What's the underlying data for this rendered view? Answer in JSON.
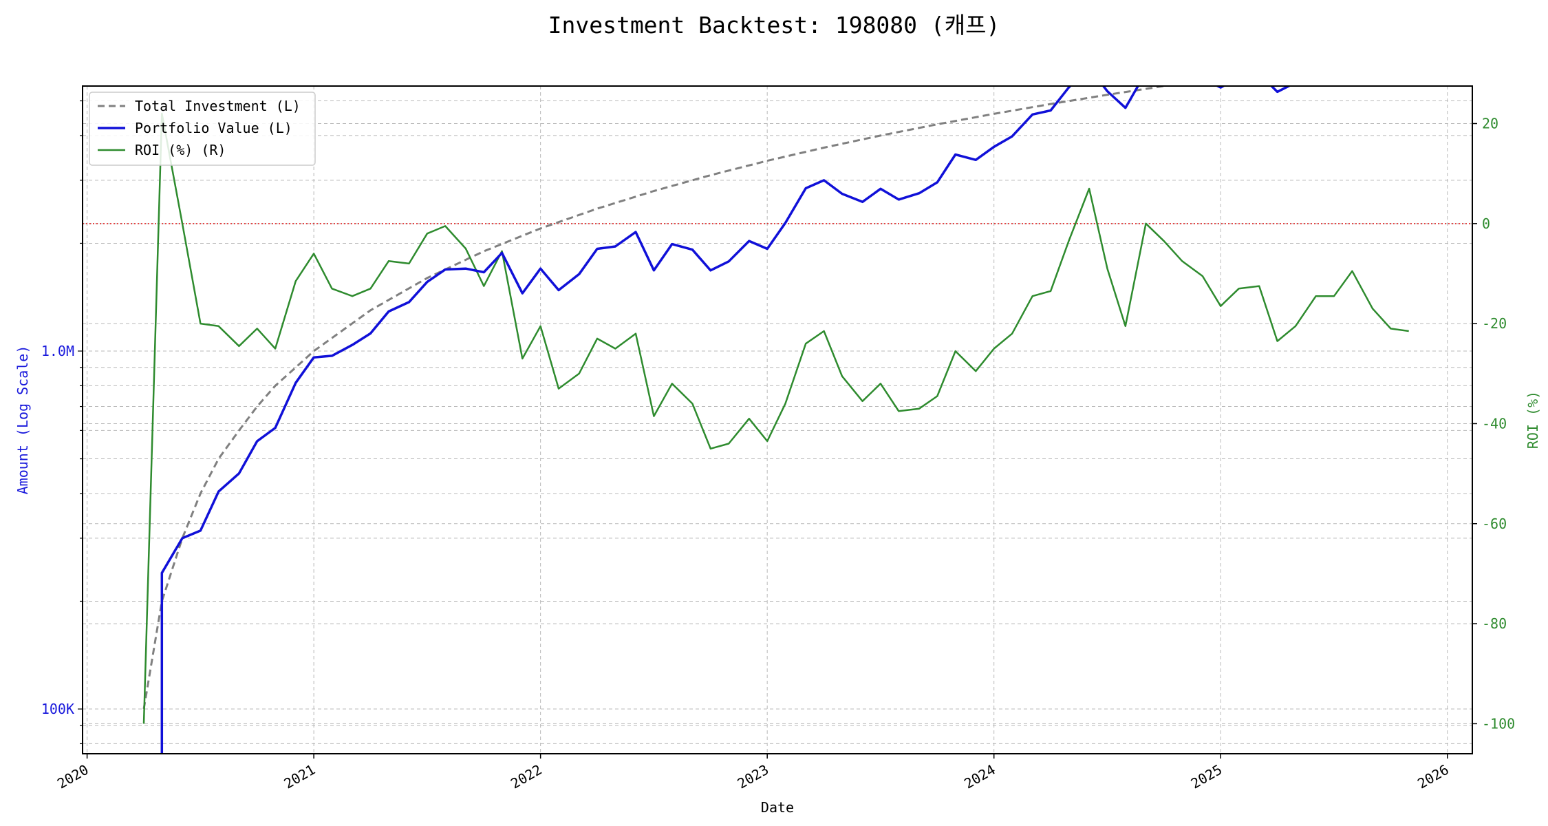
{
  "chart_data": {
    "type": "line",
    "title": "Investment Backtest: 198080 (캐프)",
    "xlabel": "Date",
    "ylabel_left": "Amount (Log Scale)",
    "ylabel_right": "ROI (%)",
    "left_axis": {
      "scale": "log",
      "ylim": [
        75000,
        5500000
      ],
      "ticks": [
        {
          "value": 100000,
          "label": "100K"
        },
        {
          "value": 1000000,
          "label": "1.0M"
        }
      ]
    },
    "right_axis": {
      "scale": "linear",
      "ylim": [
        -106,
        27.5
      ],
      "ticks": [
        -100,
        -80,
        -60,
        -40,
        -20,
        0,
        20
      ]
    },
    "x_axis": {
      "xlim": [
        2019.98,
        2026.11
      ],
      "ticks": [
        {
          "value": 2020,
          "label": "2020"
        },
        {
          "value": 2021,
          "label": "2021"
        },
        {
          "value": 2022,
          "label": "2022"
        },
        {
          "value": 2023,
          "label": "2023"
        },
        {
          "value": 2024,
          "label": "2024"
        },
        {
          "value": 2025,
          "label": "2025"
        },
        {
          "value": 2026,
          "label": "2026"
        }
      ]
    },
    "grid": true,
    "legend_position": "top-left",
    "reference_line": {
      "axis": "right",
      "value": 0,
      "color": "#e02020"
    },
    "colors": {
      "total_investment": "#808080",
      "portfolio": "#1010d8",
      "roi": "#2e8b2e",
      "left_axis": "#1a1adc",
      "right_axis": "#2e8b2e"
    },
    "series": [
      {
        "name": "Total Investment (L)",
        "axis": "left",
        "style": "dashed",
        "x": [
          2020.25,
          2020.33,
          2020.42,
          2020.5,
          2020.58,
          2020.67,
          2020.75,
          2020.83,
          2020.92,
          2021.0,
          2021.25,
          2021.5,
          2021.75,
          2022.0,
          2022.25,
          2022.5,
          2022.75,
          2023.0,
          2023.25,
          2023.5,
          2023.75,
          2024.0,
          2024.25,
          2024.5,
          2024.75,
          2025.0,
          2025.25,
          2025.5,
          2025.83
        ],
        "values": [
          100000,
          200000,
          300000,
          400000,
          500000,
          600000,
          700000,
          800000,
          900000,
          1000000,
          1300000,
          1600000,
          1900000,
          2200000,
          2500000,
          2800000,
          3100000,
          3400000,
          3700000,
          4000000,
          4300000,
          4600000,
          4900000,
          5200000,
          5500000,
          5800000,
          6100000,
          6400000,
          6800000
        ]
      },
      {
        "name": "Portfolio Value (L)",
        "axis": "left",
        "style": "solid",
        "x": [
          2020.33,
          2020.33,
          2020.42,
          2020.5,
          2020.58,
          2020.67,
          2020.75,
          2020.83,
          2020.92,
          2021.0,
          2021.08,
          2021.17,
          2021.25,
          2021.33,
          2021.42,
          2021.5,
          2021.58,
          2021.67,
          2021.75,
          2021.83,
          2021.92,
          2022.0,
          2022.08,
          2022.17,
          2022.25,
          2022.33,
          2022.42,
          2022.5,
          2022.58,
          2022.67,
          2022.75,
          2022.83,
          2022.92,
          2023.0,
          2023.08,
          2023.17,
          2023.25,
          2023.33,
          2023.42,
          2023.5,
          2023.58,
          2023.67,
          2023.75,
          2023.83,
          2023.92,
          2024.0,
          2024.08,
          2024.17,
          2024.25,
          2024.33,
          2024.42,
          2024.5,
          2024.58,
          2024.67,
          2024.75,
          2024.83,
          2024.92,
          2025.0,
          2025.08,
          2025.17,
          2025.25,
          2025.33,
          2025.42,
          2025.5,
          2025.58,
          2025.67,
          2025.75,
          2025.83
        ],
        "values": [
          50000,
          240000,
          300000,
          315000,
          405000,
          455000,
          560000,
          610000,
          815000,
          960000,
          970000,
          1040000,
          1120000,
          1290000,
          1370000,
          1560000,
          1690000,
          1700000,
          1660000,
          1880000,
          1450000,
          1700000,
          1480000,
          1640000,
          1930000,
          1960000,
          2150000,
          1680000,
          1990000,
          1920000,
          1680000,
          1780000,
          2030000,
          1930000,
          2280000,
          2850000,
          3000000,
          2750000,
          2610000,
          2840000,
          2650000,
          2760000,
          2960000,
          3540000,
          3420000,
          3720000,
          3980000,
          4580000,
          4700000,
          5450000,
          6190000,
          5320000,
          4780000,
          6010000,
          5930000,
          5830000,
          5780000,
          5450000,
          5810000,
          5950000,
          5300000,
          5620000,
          6070000,
          6160000,
          6610000,
          6180000,
          5940000,
          5980000
        ]
      },
      {
        "name": "ROI (%) (R)",
        "axis": "right",
        "style": "solid",
        "x": [
          2020.25,
          2020.33,
          2020.42,
          2020.5,
          2020.58,
          2020.67,
          2020.75,
          2020.83,
          2020.92,
          2021.0,
          2021.08,
          2021.17,
          2021.25,
          2021.33,
          2021.42,
          2021.5,
          2021.58,
          2021.67,
          2021.75,
          2021.83,
          2021.92,
          2022.0,
          2022.08,
          2022.17,
          2022.25,
          2022.33,
          2022.42,
          2022.5,
          2022.58,
          2022.67,
          2022.75,
          2022.83,
          2022.92,
          2023.0,
          2023.08,
          2023.17,
          2023.25,
          2023.33,
          2023.42,
          2023.5,
          2023.58,
          2023.67,
          2023.75,
          2023.83,
          2023.92,
          2024.0,
          2024.08,
          2024.17,
          2024.25,
          2024.33,
          2024.42,
          2024.5,
          2024.58,
          2024.67,
          2024.75,
          2024.83,
          2024.92,
          2025.0,
          2025.08,
          2025.17,
          2025.25,
          2025.33,
          2025.42,
          2025.5,
          2025.58,
          2025.67,
          2025.75,
          2025.83
        ],
        "values": [
          -100,
          22,
          0,
          -20,
          -20.5,
          -24.5,
          -21,
          -25,
          -11.5,
          -6,
          -13,
          -14.5,
          -13,
          -7.5,
          -8,
          -2,
          -0.5,
          -5,
          -12.5,
          -5.5,
          -27,
          -20.5,
          -33,
          -30,
          -23,
          -25,
          -22,
          -38.5,
          -32,
          -36,
          -45,
          -44,
          -39,
          -43.5,
          -36,
          -24,
          -21.5,
          -30.5,
          -35.5,
          -32,
          -37.5,
          -37,
          -34.5,
          -25.5,
          -29.5,
          -25,
          -22,
          -14.5,
          -13.5,
          -3.5,
          7,
          -9,
          -20.5,
          0,
          -3.5,
          -7.5,
          -10.5,
          -16.5,
          -13,
          -12.5,
          -23.5,
          -20.5,
          -14.5,
          -14.5,
          -9.5,
          -17,
          -21,
          -21.5
        ]
      }
    ]
  }
}
